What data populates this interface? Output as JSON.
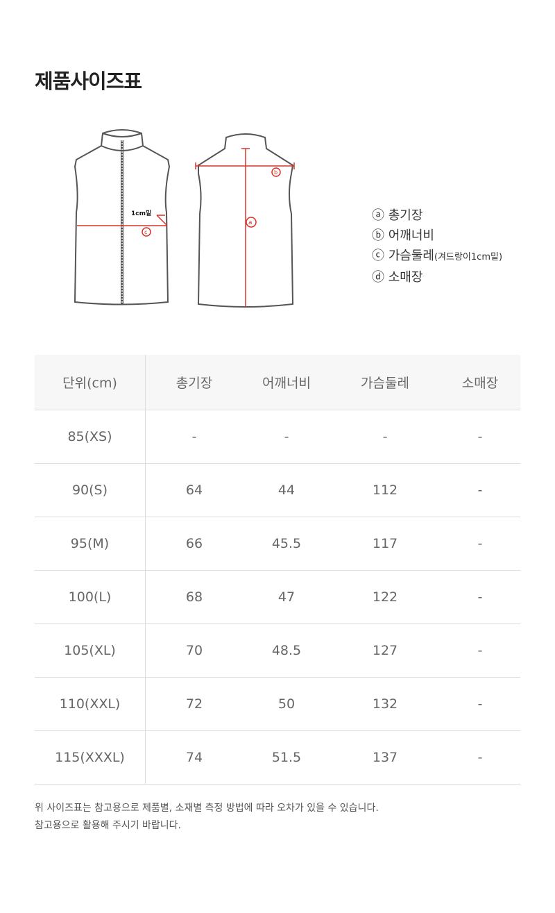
{
  "title": "제품사이즈표",
  "diagram": {
    "label_1cm": "1cm밑",
    "marker_a": "a",
    "marker_b": "b",
    "marker_c": "c",
    "accent_color": "#d9322a"
  },
  "legend": [
    {
      "mark": "ⓐ",
      "text": "총기장",
      "note": ""
    },
    {
      "mark": "ⓑ",
      "text": "어깨너비",
      "note": ""
    },
    {
      "mark": "ⓒ",
      "text": "가슴둘레",
      "note": "(겨드랑이1cm밑)"
    },
    {
      "mark": "ⓓ",
      "text": "소매장",
      "note": ""
    }
  ],
  "table": {
    "headers": [
      "단위(cm)",
      "총기장",
      "어깨너비",
      "가슴둘레",
      "소매장"
    ],
    "rows": [
      [
        "85(XS)",
        "-",
        "-",
        "-",
        "-"
      ],
      [
        "90(S)",
        "64",
        "44",
        "112",
        "-"
      ],
      [
        "95(M)",
        "66",
        "45.5",
        "117",
        "-"
      ],
      [
        "100(L)",
        "68",
        "47",
        "122",
        "-"
      ],
      [
        "105(XL)",
        "70",
        "48.5",
        "127",
        "-"
      ],
      [
        "110(XXL)",
        "72",
        "50",
        "132",
        "-"
      ],
      [
        "115(XXXL)",
        "74",
        "51.5",
        "137",
        "-"
      ]
    ]
  },
  "notes": [
    "위 사이즈표는 참고용으로 제품별, 소재별 측정 방법에 따라 오차가 있을 수 있습니다.",
    "참고용으로 활용해 주시기 바랍니다."
  ]
}
